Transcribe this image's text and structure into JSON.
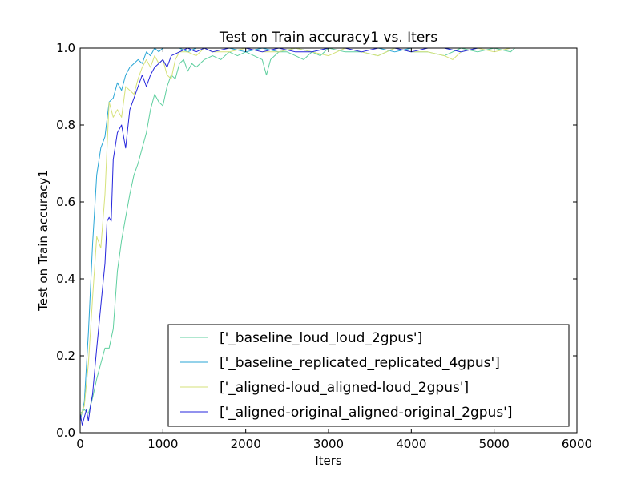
{
  "chart_data": {
    "type": "line",
    "title": "Test on Train accuracy1  vs. Iters",
    "xlabel": "Iters",
    "ylabel": "Test on Train accuracy1",
    "xlim": [
      0,
      6000
    ],
    "ylim": [
      0.0,
      1.0
    ],
    "xticks": [
      0,
      1000,
      2000,
      3000,
      4000,
      5000,
      6000
    ],
    "xtick_labels": [
      "0",
      "1000",
      "2000",
      "3000",
      "4000",
      "5000",
      "6000"
    ],
    "yticks": [
      0.0,
      0.2,
      0.4,
      0.6,
      0.8,
      1.0
    ],
    "ytick_labels": [
      "0.0",
      "0.2",
      "0.4",
      "0.6",
      "0.8",
      "1.0"
    ],
    "grid": false,
    "legend_position": "lower-right",
    "series": [
      {
        "name": "['_baseline_loud_loud_2gpus']",
        "color": "#5fcf9f",
        "x": [
          0,
          50,
          100,
          150,
          200,
          250,
          300,
          350,
          400,
          450,
          500,
          550,
          600,
          650,
          700,
          750,
          800,
          850,
          900,
          950,
          1000,
          1050,
          1100,
          1150,
          1200,
          1250,
          1300,
          1350,
          1400,
          1500,
          1600,
          1700,
          1800,
          1900,
          2000,
          2100,
          2200,
          2250,
          2300,
          2400,
          2500,
          2600,
          2700,
          2800,
          2900,
          3000,
          3200,
          3400,
          3600,
          3800,
          4000,
          4200,
          4400,
          4600,
          4800,
          5000,
          5200,
          5250
        ],
        "values": [
          0.05,
          0.06,
          0.05,
          0.09,
          0.14,
          0.18,
          0.22,
          0.22,
          0.27,
          0.42,
          0.5,
          0.56,
          0.62,
          0.67,
          0.7,
          0.74,
          0.78,
          0.84,
          0.88,
          0.86,
          0.85,
          0.9,
          0.93,
          0.92,
          0.96,
          0.97,
          0.94,
          0.96,
          0.95,
          0.97,
          0.98,
          0.97,
          0.99,
          0.98,
          0.99,
          0.98,
          0.97,
          0.93,
          0.97,
          0.99,
          0.99,
          0.98,
          0.97,
          0.99,
          0.98,
          1.0,
          0.99,
          0.99,
          0.98,
          1.0,
          0.99,
          0.99,
          0.98,
          1.0,
          0.99,
          1.0,
          0.99,
          1.0
        ]
      },
      {
        "name": "['_baseline_replicated_replicated_4gpus']",
        "color": "#29a6d6",
        "x": [
          0,
          50,
          100,
          150,
          200,
          250,
          300,
          350,
          400,
          450,
          500,
          550,
          600,
          650,
          700,
          750,
          800,
          850,
          900,
          950,
          1000,
          1100,
          1200,
          1300,
          1400,
          1500,
          1600,
          1800,
          2000,
          2200,
          2400,
          2600,
          2800,
          3000,
          3200,
          3400,
          3600,
          3800,
          4000,
          4200,
          4400,
          4600,
          4800,
          5000,
          5200,
          5250
        ],
        "values": [
          0.03,
          0.08,
          0.26,
          0.49,
          0.67,
          0.74,
          0.77,
          0.86,
          0.87,
          0.91,
          0.89,
          0.93,
          0.95,
          0.96,
          0.97,
          0.96,
          0.99,
          0.98,
          1.0,
          0.99,
          1.0,
          1.0,
          1.0,
          0.99,
          1.0,
          1.0,
          1.0,
          1.0,
          0.99,
          1.0,
          0.99,
          1.0,
          0.99,
          1.0,
          1.0,
          1.0,
          1.0,
          0.99,
          1.0,
          1.0,
          1.0,
          0.99,
          1.0,
          1.0,
          1.0,
          1.0
        ]
      },
      {
        "name": "['_aligned-loud_aligned-loud_2gpus']",
        "color": "#d6e27a",
        "x": [
          0,
          50,
          100,
          150,
          200,
          250,
          300,
          350,
          400,
          450,
          500,
          550,
          600,
          650,
          700,
          750,
          800,
          850,
          900,
          950,
          1000,
          1050,
          1100,
          1150,
          1200,
          1300,
          1400,
          1500,
          1600,
          1800,
          2000,
          2200,
          2400,
          2600,
          2800,
          3000,
          3200,
          3400,
          3600,
          3800,
          4000,
          4200,
          4400,
          4500,
          4600,
          4800,
          5000,
          5200,
          5250
        ],
        "values": [
          0.04,
          0.07,
          0.18,
          0.35,
          0.51,
          0.48,
          0.62,
          0.86,
          0.82,
          0.84,
          0.82,
          0.9,
          0.89,
          0.88,
          0.92,
          0.95,
          0.97,
          0.95,
          0.98,
          0.96,
          0.97,
          0.93,
          0.92,
          0.97,
          0.99,
          0.99,
          0.98,
          1.0,
          0.99,
          0.99,
          1.0,
          0.99,
          0.99,
          1.0,
          0.99,
          0.98,
          1.0,
          0.99,
          0.98,
          1.0,
          0.99,
          0.99,
          0.98,
          0.97,
          0.99,
          1.0,
          0.99,
          1.0,
          1.0
        ]
      },
      {
        "name": "['_aligned-original_aligned-original_2gpus']",
        "color": "#2525dc",
        "x": [
          0,
          25,
          50,
          75,
          100,
          125,
          150,
          200,
          250,
          300,
          325,
          350,
          375,
          400,
          450,
          500,
          550,
          600,
          650,
          700,
          750,
          800,
          850,
          900,
          950,
          1000,
          1050,
          1100,
          1200,
          1300,
          1400,
          1500,
          1600,
          1800,
          2000,
          2200,
          2400,
          2600,
          2800,
          3000,
          3200,
          3400,
          3600,
          3800,
          4000,
          4200,
          4400,
          4600,
          4800,
          5000,
          5200,
          5250
        ],
        "values": [
          0.05,
          0.02,
          0.04,
          0.06,
          0.03,
          0.07,
          0.1,
          0.22,
          0.33,
          0.44,
          0.55,
          0.56,
          0.55,
          0.71,
          0.78,
          0.8,
          0.74,
          0.84,
          0.87,
          0.9,
          0.93,
          0.9,
          0.93,
          0.95,
          0.96,
          0.97,
          0.95,
          0.98,
          0.99,
          1.0,
          0.99,
          1.0,
          0.99,
          1.0,
          1.0,
          0.99,
          1.0,
          0.99,
          0.99,
          1.0,
          1.0,
          0.99,
          1.0,
          1.0,
          0.99,
          1.0,
          1.0,
          0.99,
          1.0,
          1.0,
          1.0,
          1.0
        ]
      }
    ]
  }
}
